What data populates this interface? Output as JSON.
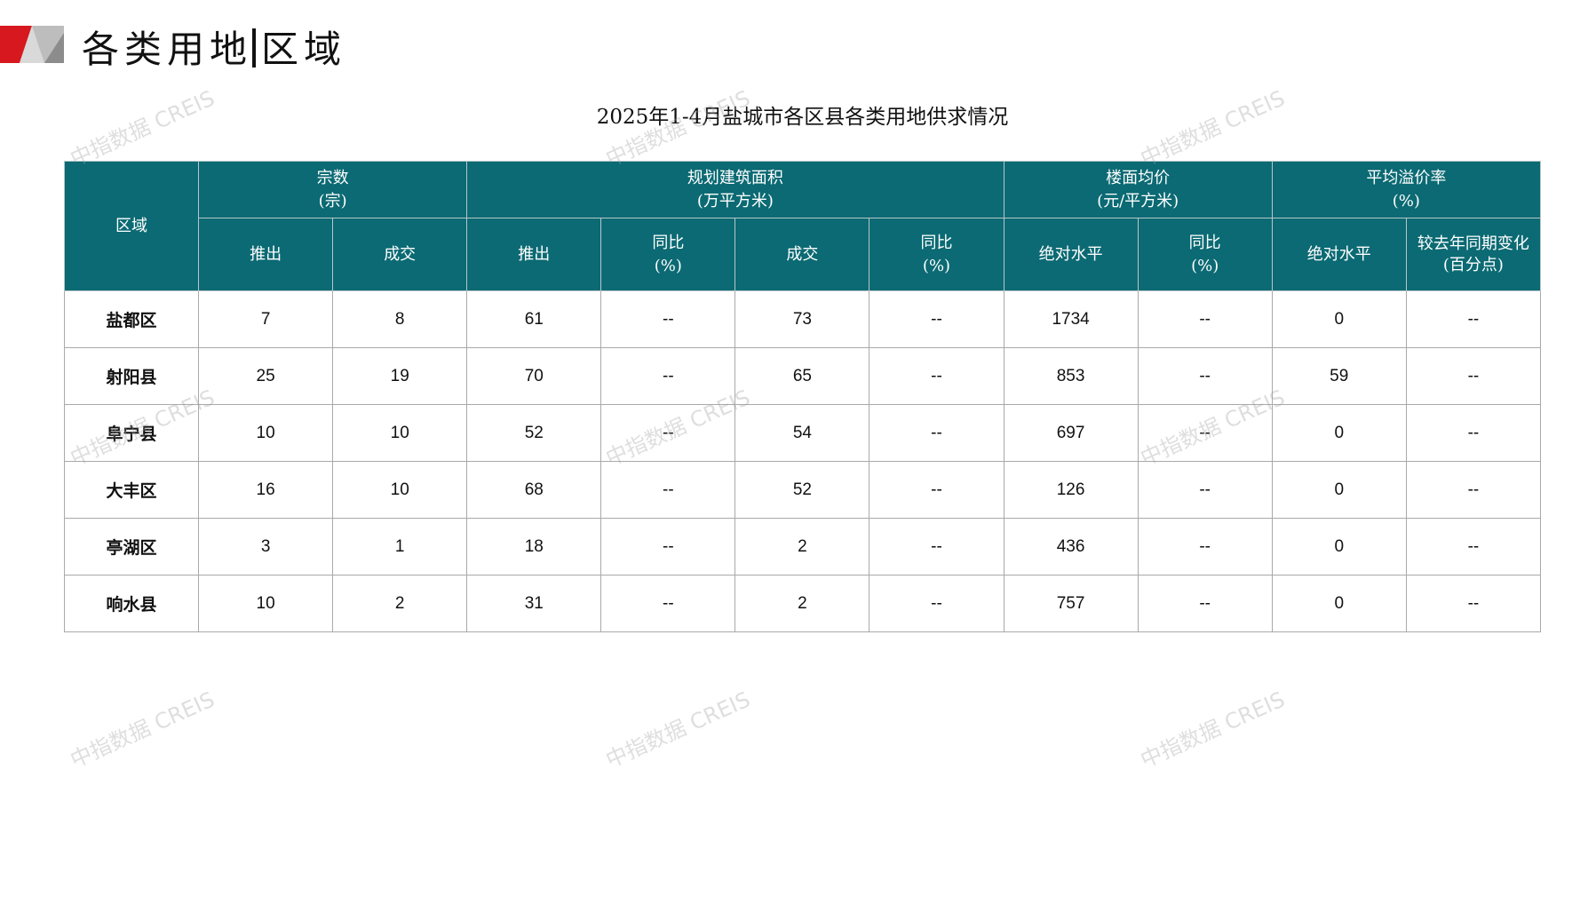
{
  "header": {
    "title_left": "各类用地",
    "title_right": "区域"
  },
  "table_title": "2025年1-4月盐城市各区县各类用地供求情况",
  "watermark": "中指数据 CREIS",
  "colors": {
    "header_bg": "#0b6a73",
    "logo_red": "#d7191f",
    "logo_gray": "#a6a6a6"
  },
  "columns": {
    "region": "区域",
    "groups": [
      {
        "label": "宗数",
        "unit": "(宗)"
      },
      {
        "label": "规划建筑面积",
        "unit": "(万平方米)"
      },
      {
        "label": "楼面均价",
        "unit": "(元/平方米)"
      },
      {
        "label": "平均溢价率",
        "unit": "(%)"
      }
    ],
    "sub": [
      {
        "label": "推出",
        "unit": ""
      },
      {
        "label": "成交",
        "unit": ""
      },
      {
        "label": "推出",
        "unit": ""
      },
      {
        "label": "同比",
        "unit": "(%)"
      },
      {
        "label": "成交",
        "unit": ""
      },
      {
        "label": "同比",
        "unit": "(%)"
      },
      {
        "label": "绝对水平",
        "unit": ""
      },
      {
        "label": "同比",
        "unit": "(%)"
      },
      {
        "label": "绝对水平",
        "unit": ""
      },
      {
        "label": "较去年同期变化",
        "unit": "(百分点)"
      }
    ]
  },
  "rows": [
    [
      "盐都区",
      "7",
      "8",
      "61",
      "--",
      "73",
      "--",
      "1734",
      "--",
      "0",
      "--"
    ],
    [
      "射阳县",
      "25",
      "19",
      "70",
      "--",
      "65",
      "--",
      "853",
      "--",
      "59",
      "--"
    ],
    [
      "阜宁县",
      "10",
      "10",
      "52",
      "--",
      "54",
      "--",
      "697",
      "--",
      "0",
      "--"
    ],
    [
      "大丰区",
      "16",
      "10",
      "68",
      "--",
      "52",
      "--",
      "126",
      "--",
      "0",
      "--"
    ],
    [
      "亭湖区",
      "3",
      "1",
      "18",
      "--",
      "2",
      "--",
      "436",
      "--",
      "0",
      "--"
    ],
    [
      "响水县",
      "10",
      "2",
      "31",
      "--",
      "2",
      "--",
      "757",
      "--",
      "0",
      "--"
    ]
  ]
}
